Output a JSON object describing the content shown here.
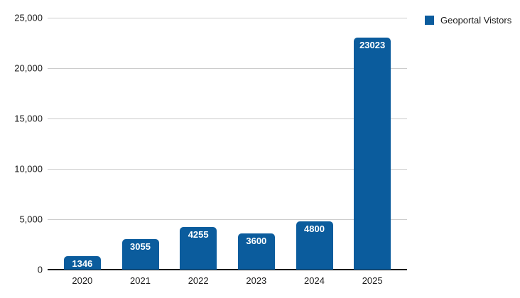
{
  "chart_data": {
    "type": "bar",
    "title": "",
    "categories": [
      "2020",
      "2021",
      "2022",
      "2023",
      "2024",
      "2025"
    ],
    "series": [
      {
        "name": "Geoportal Vistors",
        "values": [
          1346,
          3055,
          4255,
          3600,
          4800,
          23023
        ]
      }
    ],
    "value_labels": [
      "1346",
      "3055",
      "4255",
      "3600",
      "4800",
      "23023"
    ],
    "xlabel": "",
    "ylabel": "",
    "ylim": [
      0,
      25000
    ],
    "ytick_interval": 5000,
    "ytick_labels": [
      "0",
      "5,000",
      "10,000",
      "15,000",
      "20,000",
      "25,000"
    ],
    "grid": true,
    "legend_position": "top-right",
    "bar_color": "#0b5c9d",
    "value_label_color": "#ffffff",
    "gridline_color": "#cccccc",
    "axis_line_color": "#1b1b1b",
    "tick_label_color": "#1a1a1a"
  },
  "legend": {
    "label": "Geoportal Vistors"
  }
}
